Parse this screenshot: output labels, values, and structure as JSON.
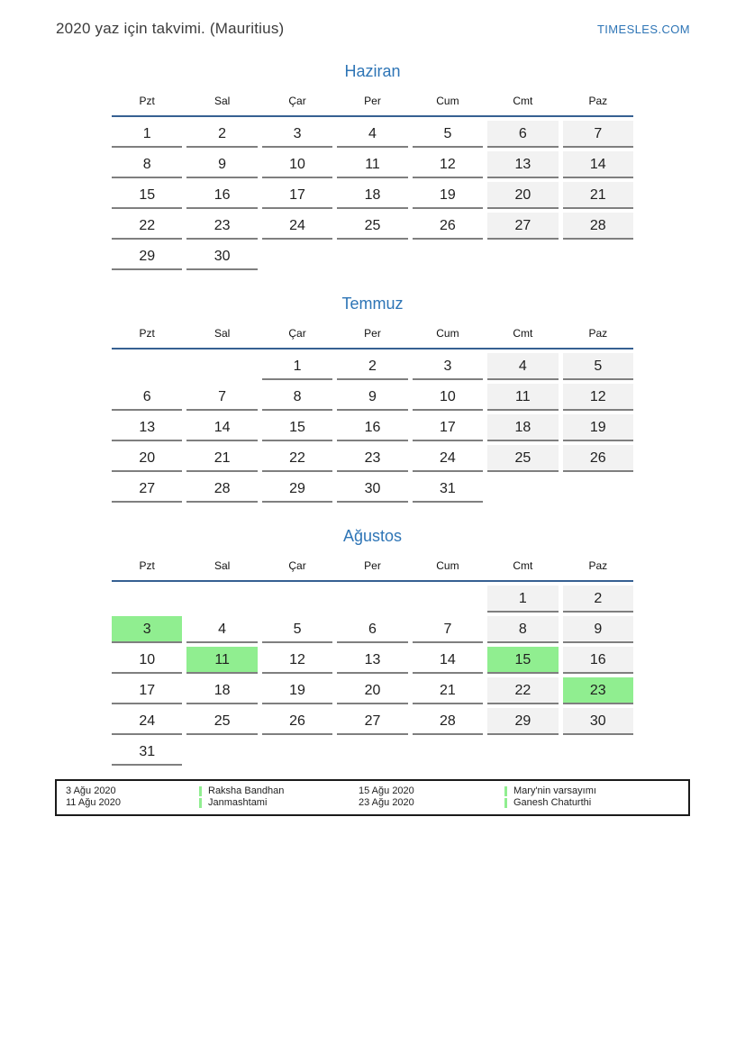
{
  "page": {
    "title": "2020 yaz için takvimi. (Mauritius)",
    "site": "TIMESLES.COM"
  },
  "colors": {
    "title_blue": "#2e75b6",
    "header_line_blue": "#366092",
    "weekend_bg": "#f2f2f2",
    "holiday_green": "#90ee90",
    "cell_border_gray": "#7f7f7f"
  },
  "day_headers": [
    "Pzt",
    "Sal",
    "Çar",
    "Per",
    "Cum",
    "Cmt",
    "Paz"
  ],
  "months": [
    {
      "name": "Haziran",
      "weeks": [
        [
          "1",
          "2",
          "3",
          "4",
          "5",
          "6",
          "7"
        ],
        [
          "8",
          "9",
          "10",
          "11",
          "12",
          "13",
          "14"
        ],
        [
          "15",
          "16",
          "17",
          "18",
          "19",
          "20",
          "21"
        ],
        [
          "22",
          "23",
          "24",
          "25",
          "26",
          "27",
          "28"
        ],
        [
          "29",
          "30",
          "",
          "",
          "",
          "",
          ""
        ]
      ],
      "highlights": []
    },
    {
      "name": "Temmuz",
      "weeks": [
        [
          "",
          "",
          "1",
          "2",
          "3",
          "4",
          "5"
        ],
        [
          "6",
          "7",
          "8",
          "9",
          "10",
          "11",
          "12"
        ],
        [
          "13",
          "14",
          "15",
          "16",
          "17",
          "18",
          "19"
        ],
        [
          "20",
          "21",
          "22",
          "23",
          "24",
          "25",
          "26"
        ],
        [
          "27",
          "28",
          "29",
          "30",
          "31",
          "",
          ""
        ]
      ],
      "highlights": []
    },
    {
      "name": "Ağustos",
      "weeks": [
        [
          "",
          "",
          "",
          "",
          "",
          "1",
          "2"
        ],
        [
          "3",
          "4",
          "5",
          "6",
          "7",
          "8",
          "9"
        ],
        [
          "10",
          "11",
          "12",
          "13",
          "14",
          "15",
          "16"
        ],
        [
          "17",
          "18",
          "19",
          "20",
          "21",
          "22",
          "23"
        ],
        [
          "24",
          "25",
          "26",
          "27",
          "28",
          "29",
          "30"
        ],
        [
          "31",
          "",
          "",
          "",
          "",
          "",
          ""
        ]
      ],
      "highlights": [
        "3",
        "11",
        "15",
        "23"
      ]
    }
  ],
  "legend": {
    "items": [
      {
        "date": "3 Ağu 2020",
        "name": "Raksha Bandhan"
      },
      {
        "date": "11 Ağu 2020",
        "name": "Janmashtami"
      },
      {
        "date": "15 Ağu 2020",
        "name": "Mary'nin varsayımı"
      },
      {
        "date": "23 Ağu 2020",
        "name": "Ganesh Chaturthi"
      }
    ]
  }
}
